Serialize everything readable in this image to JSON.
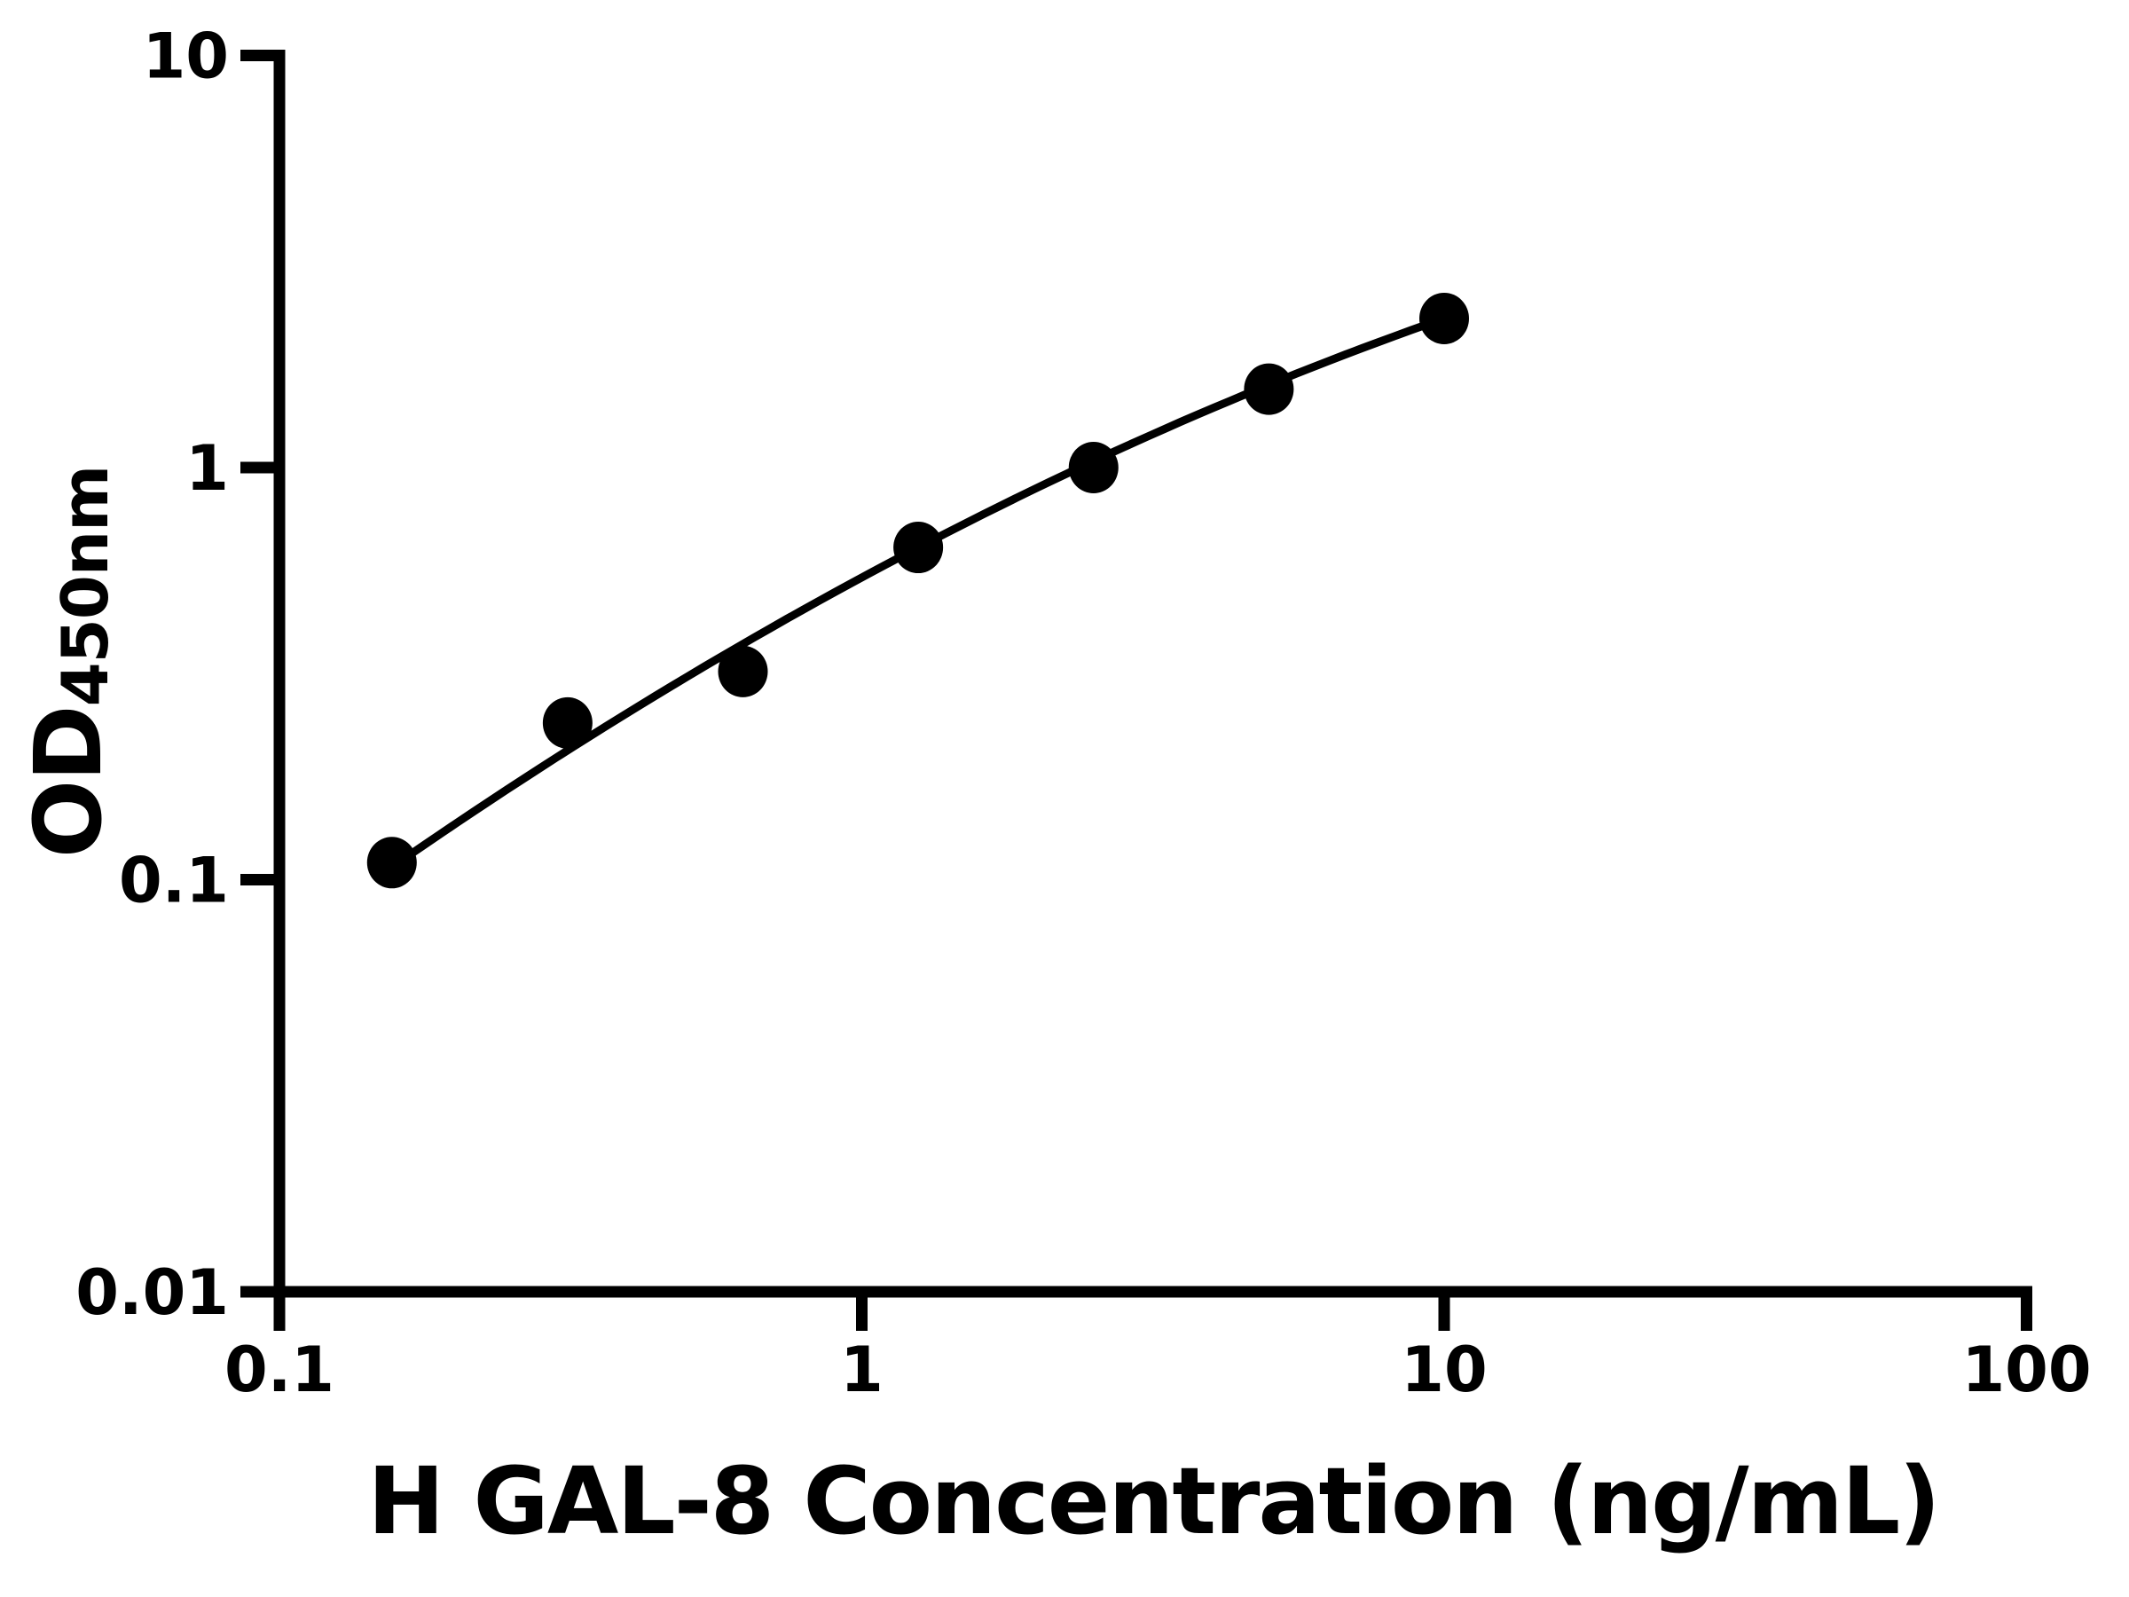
{
  "chart_data": {
    "type": "scatter",
    "title": "",
    "xlabel": "H GAL-8 Concentration (ng/mL)",
    "ylabel": "OD450nm",
    "ylabel_main": "OD",
    "ylabel_sub": "450nm",
    "x_scale": "log",
    "y_scale": "log",
    "xlim": [
      0.1,
      100
    ],
    "ylim": [
      0.01,
      10
    ],
    "x_ticks": [
      "0.1",
      "1",
      "10",
      "100"
    ],
    "y_ticks": [
      "0.01",
      "0.1",
      "1",
      "10"
    ],
    "grid": false,
    "legend": null,
    "points": [
      {
        "x": 0.156,
        "y": 0.11
      },
      {
        "x": 0.3125,
        "y": 0.24
      },
      {
        "x": 0.625,
        "y": 0.32
      },
      {
        "x": 1.25,
        "y": 0.64
      },
      {
        "x": 2.5,
        "y": 1.0
      },
      {
        "x": 5,
        "y": 1.55
      },
      {
        "x": 10,
        "y": 2.3
      }
    ],
    "fit_curve": {
      "type": "quadratic_loglog",
      "a": -0.2667,
      "b": 0.7629,
      "c": -0.1342,
      "x_start": 0.156,
      "x_end": 10
    },
    "colors": {
      "marker": "#000000",
      "line": "#000000",
      "axis": "#000000",
      "background": "#ffffff"
    }
  }
}
